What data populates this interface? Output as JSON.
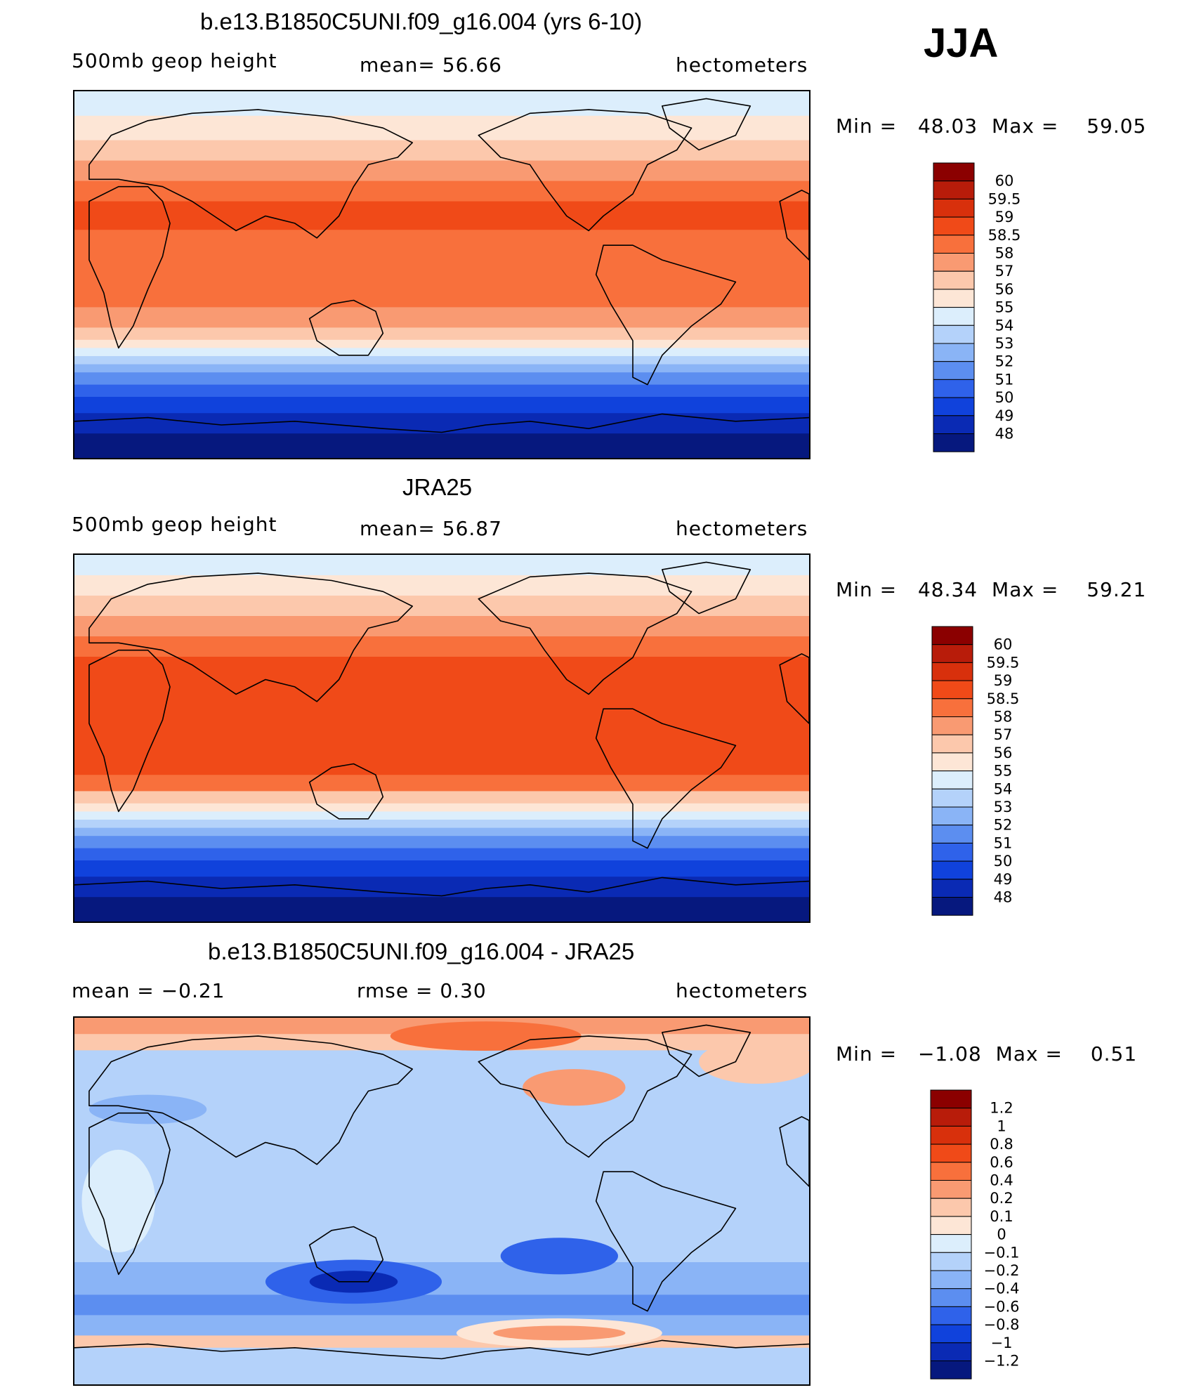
{
  "season": "JJA",
  "panels": [
    {
      "id": "model",
      "title": "b.e13.B1850C5UNI.f09_g16.004 (yrs 6-10)",
      "left_label": "500mb  geop  height",
      "mid_label": "mean=   56.66",
      "right_label": "hectometers",
      "minmax": {
        "min_text": "Min  =",
        "min_value": "48.03",
        "max_text": "Max  =",
        "max_value": "59.05"
      },
      "legend": {
        "labels": [
          "60",
          "59.5",
          "59",
          "58.5",
          "58",
          "57",
          "56",
          "55",
          "54",
          "53",
          "52",
          "51",
          "50",
          "49",
          "48"
        ],
        "colors": [
          "#8b0000",
          "#b81c0a",
          "#d8300c",
          "#f04a18",
          "#f8703c",
          "#f99a72",
          "#fcc8ac",
          "#fde6d6",
          "#dceefc",
          "#b4d2fa",
          "#8ab4f6",
          "#5c8ef0",
          "#2f62ea",
          "#1042dc",
          "#0a2ab4",
          "#06187e"
        ]
      },
      "map_bands": {
        "lat_edges": [
          90,
          78,
          66,
          56,
          46,
          36,
          22,
          -16,
          -26,
          -32,
          -36,
          -40,
          -44,
          -48,
          -54,
          -60,
          -68,
          -78,
          -90
        ],
        "colors": [
          "#dceefc",
          "#fde6d6",
          "#fcc8ac",
          "#f99a72",
          "#f8703c",
          "#f04a18",
          "#f8703c",
          "#f99a72",
          "#fcc8ac",
          "#fde6d6",
          "#dceefc",
          "#b4d2fa",
          "#8ab4f6",
          "#5c8ef0",
          "#2f62ea",
          "#1042dc",
          "#0a2ab4",
          "#06187e"
        ]
      }
    },
    {
      "id": "obs",
      "title": "JRA25",
      "left_label": "500mb  geop  height",
      "mid_label": "mean=   56.87",
      "right_label": "hectometers",
      "minmax": {
        "min_text": "Min  =",
        "min_value": "48.34",
        "max_text": "Max  =",
        "max_value": "59.21"
      },
      "legend": {
        "labels": [
          "60",
          "59.5",
          "59",
          "58.5",
          "58",
          "57",
          "56",
          "55",
          "54",
          "53",
          "52",
          "51",
          "50",
          "49",
          "48"
        ],
        "colors": [
          "#8b0000",
          "#b81c0a",
          "#d8300c",
          "#f04a18",
          "#f8703c",
          "#f99a72",
          "#fcc8ac",
          "#fde6d6",
          "#dceefc",
          "#b4d2fa",
          "#8ab4f6",
          "#5c8ef0",
          "#2f62ea",
          "#1042dc",
          "#0a2ab4",
          "#06187e"
        ]
      },
      "map_bands": {
        "lat_edges": [
          90,
          80,
          70,
          60,
          50,
          40,
          26,
          -18,
          -26,
          -32,
          -36,
          -40,
          -44,
          -48,
          -54,
          -60,
          -68,
          -78,
          -90
        ],
        "colors": [
          "#dceefc",
          "#fde6d6",
          "#fcc8ac",
          "#f99a72",
          "#f8703c",
          "#f04a18",
          "#f04a18",
          "#f8703c",
          "#fcc8ac",
          "#fde6d6",
          "#dceefc",
          "#b4d2fa",
          "#8ab4f6",
          "#5c8ef0",
          "#2f62ea",
          "#1042dc",
          "#0a2ab4",
          "#06187e"
        ]
      }
    },
    {
      "id": "diff",
      "title": "b.e13.B1850C5UNI.f09_g16.004 - JRA25",
      "left_label": "mean  =    −0.21",
      "mid_label": "rmse  =     0.30",
      "right_label": "hectometers",
      "minmax": {
        "min_text": "Min  =",
        "min_value": "−1.08",
        "max_text": "Max  =",
        "max_value": "0.51"
      },
      "legend": {
        "labels": [
          "1.2",
          "1",
          "0.8",
          "0.6",
          "0.4",
          "0.2",
          "0.1",
          "0",
          "−0.1",
          "−0.2",
          "−0.4",
          "−0.6",
          "−0.8",
          "−1",
          "−1.2"
        ],
        "colors": [
          "#8b0000",
          "#b81c0a",
          "#d8300c",
          "#f04a18",
          "#f8703c",
          "#f99a72",
          "#fcc8ac",
          "#fde6d6",
          "#dceefc",
          "#b4d2fa",
          "#8ab4f6",
          "#5c8ef0",
          "#2f62ea",
          "#1042dc",
          "#0a2ab4",
          "#06187e"
        ]
      },
      "map_bands": {
        "lat_edges": [
          90,
          82,
          74,
          60,
          -10,
          -30,
          -46,
          -56,
          -66,
          -72,
          -90
        ],
        "colors": [
          "#f99a72",
          "#fcc8ac",
          "#b4d2fa",
          "#b4d2fa",
          "#b4d2fa",
          "#8ab4f6",
          "#5c8ef0",
          "#8ab4f6",
          "#fcc8ac",
          "#b4d2fa"
        ]
      }
    }
  ]
}
